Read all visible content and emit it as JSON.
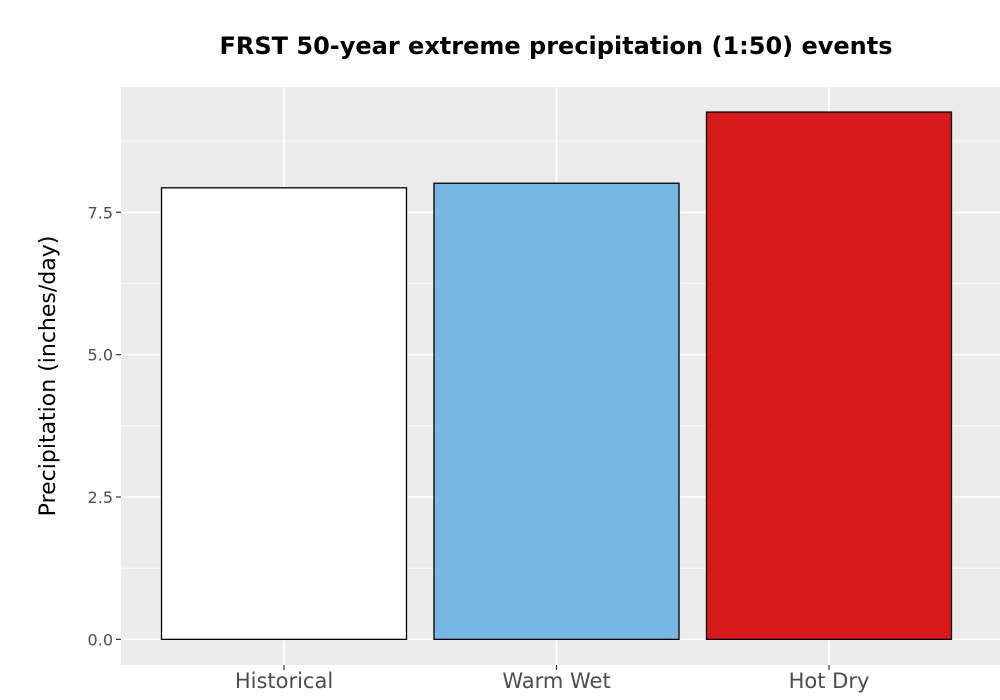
{
  "chart_data": {
    "type": "bar",
    "title": "FRST 50-year extreme precipitation (1:50) events",
    "xlabel": "",
    "ylabel": "Precipitation (inches/day)",
    "categories": [
      "Historical",
      "Warm Wet",
      "Hot Dry"
    ],
    "values": [
      7.93,
      8.01,
      9.26
    ],
    "bar_colors": [
      "#ffffff",
      "#78b7e1",
      "#d7191c"
    ],
    "bar_outline_color": "#000000",
    "ylim": [
      -0.45,
      9.7
    ],
    "yticks": [
      0.0,
      2.5,
      5.0,
      7.5
    ],
    "ytick_labels": [
      "0.0",
      "2.5",
      "5.0",
      "7.5"
    ],
    "grid": true,
    "panel_background": "#ebebeb",
    "grid_color": "#ffffff",
    "legend": "none"
  }
}
